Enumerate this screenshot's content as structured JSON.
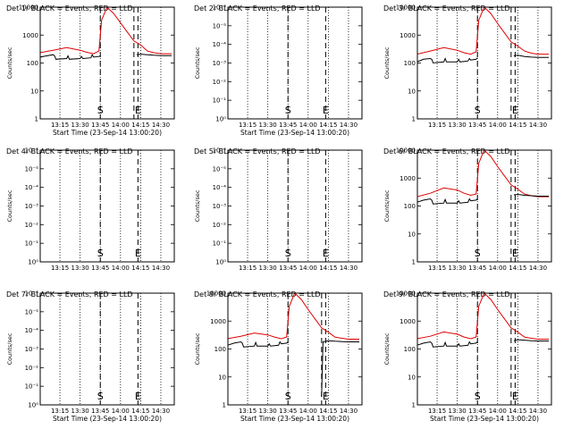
{
  "figure": {
    "background": "#ffffff",
    "axis_color": "#000000",
    "events_color": "#000000",
    "lld_color": "#e00000"
  },
  "chart_data": [
    {
      "type": "line",
      "title": "Det 1r BLACK = Events, RED = LLD",
      "xlabel": "Start Time (23-Sep-14 13:00:20)",
      "ylabel": "Counts/sec",
      "xticks": [
        "13:15",
        "13:30",
        "13:45",
        "14:00",
        "14:15",
        "14:30"
      ],
      "yticks": [
        "1",
        "10",
        "100",
        "1000",
        "10000"
      ],
      "xlim": [
        "13:00:20",
        "14:40"
      ],
      "ylim": [
        1,
        12000
      ],
      "yscale": "log",
      "grid": "vertical dotted at each tick",
      "markers": [
        {
          "label": "S",
          "time": "13:45",
          "style": "dashed"
        },
        {
          "label": "",
          "time": "14:10",
          "style": "dashed"
        },
        {
          "label": "E",
          "time": "14:13",
          "style": "dashed"
        }
      ],
      "series": [
        {
          "key": "events",
          "color": "#000000",
          "x": [
            "13:00",
            "13:05",
            "13:10",
            "13:11",
            "13:12",
            "13:20",
            "13:21",
            "13:22",
            "13:30",
            "13:31",
            "13:32",
            "13:38",
            "13:39",
            "13:40",
            "13:44",
            "13:45"
          ],
          "values": [
            180,
            200,
            220,
            200,
            150,
            160,
            200,
            150,
            160,
            190,
            160,
            170,
            220,
            180,
            190,
            200
          ]
        },
        {
          "key": "lld",
          "color": "#e00000",
          "x": [
            "13:00",
            "13:10",
            "13:20",
            "13:30",
            "13:35",
            "13:40",
            "13:44",
            "13:46",
            "13:50",
            "13:55",
            "14:00",
            "14:05",
            "14:10",
            "14:15",
            "14:20",
            "14:25",
            "14:30",
            "14:38"
          ],
          "values": [
            260,
            320,
            400,
            320,
            270,
            240,
            300,
            4000,
            12000,
            7000,
            3200,
            1500,
            700,
            500,
            300,
            260,
            240,
            240
          ]
        },
        {
          "key": "events_late",
          "color": "#000000",
          "x": [
            "14:12",
            "14:15",
            "14:20",
            "14:25",
            "14:30",
            "14:38"
          ],
          "values": [
            220,
            230,
            220,
            210,
            205,
            205
          ]
        }
      ]
    },
    {
      "type": "line",
      "title": "Det 2r BLACK = Events, RED = LLD",
      "xlabel": "Start Time (23-Sep-14 13:00:20)",
      "ylabel": "Counts/sec",
      "xticks": [
        "13:15",
        "13:30",
        "13:45",
        "14:00",
        "14:15",
        "14:30"
      ],
      "yticks": [
        "10⁰",
        "10⁻¹",
        "10⁻²",
        "10⁻³",
        "10⁻⁴",
        "10⁻⁵",
        "10⁻⁶"
      ],
      "xlim": [
        "13:00:20",
        "14:40"
      ],
      "ylim": [
        1,
        1000000
      ],
      "yscale": "log",
      "grid": "vertical dotted at each tick",
      "markers": [
        {
          "label": "S",
          "time": "13:45",
          "style": "dashed"
        },
        {
          "label": "E",
          "time": "14:13",
          "style": "dashed"
        }
      ],
      "series": []
    },
    {
      "type": "line",
      "title": "Det 3r BLACK = Events, RED = LLD",
      "xlabel": "",
      "ylabel": "Counts/sec",
      "xticks": [
        "13:15",
        "13:30",
        "13:45",
        "14:00",
        "14:15",
        "14:30"
      ],
      "yticks": [
        "1",
        "10",
        "100",
        "1000",
        "10000"
      ],
      "xlim": [
        "13:00:20",
        "14:40"
      ],
      "ylim": [
        1,
        12000
      ],
      "yscale": "log",
      "grid": "vertical dotted at each tick",
      "markers": [
        {
          "label": "S",
          "time": "13:45",
          "style": "dashed"
        },
        {
          "label": "",
          "time": "14:10",
          "style": "dashed"
        },
        {
          "label": "E",
          "time": "14:13",
          "style": "dashed"
        }
      ],
      "series": [
        {
          "key": "events",
          "color": "#000000",
          "x": [
            "13:00",
            "13:05",
            "13:10",
            "13:11",
            "13:12",
            "13:20",
            "13:21",
            "13:22",
            "13:30",
            "13:31",
            "13:32",
            "13:38",
            "13:39",
            "13:40",
            "13:44",
            "13:45"
          ],
          "values": [
            120,
            150,
            160,
            150,
            110,
            120,
            160,
            120,
            120,
            150,
            120,
            130,
            160,
            140,
            150,
            170
          ]
        },
        {
          "key": "lld",
          "color": "#e00000",
          "x": [
            "13:00",
            "13:10",
            "13:20",
            "13:30",
            "13:35",
            "13:40",
            "13:44",
            "13:46",
            "13:50",
            "13:55",
            "14:00",
            "14:05",
            "14:10",
            "14:15",
            "14:20",
            "14:25",
            "14:30",
            "14:38"
          ],
          "values": [
            230,
            300,
            400,
            320,
            260,
            230,
            280,
            4000,
            12000,
            7000,
            3000,
            1400,
            650,
            450,
            300,
            250,
            230,
            230
          ]
        },
        {
          "key": "events_late",
          "color": "#000000",
          "x": [
            "14:12",
            "14:15",
            "14:20",
            "14:25",
            "14:30",
            "14:38"
          ],
          "values": [
            200,
            210,
            190,
            180,
            175,
            175
          ]
        }
      ]
    },
    {
      "type": "line",
      "title": "Det 4r BLACK = Events, RED = LLD",
      "xlabel": "",
      "ylabel": "Counts/sec",
      "xticks": [
        "13:15",
        "13:30",
        "13:45",
        "14:00",
        "14:15",
        "14:30"
      ],
      "yticks": [
        "10⁰",
        "10⁻¹",
        "10⁻²",
        "10⁻³",
        "10⁻⁴",
        "10⁻⁵",
        "10⁻⁶"
      ],
      "xlim": [
        "13:00:20",
        "14:40"
      ],
      "ylim": [
        1,
        1000000
      ],
      "yscale": "log",
      "grid": "vertical dotted at each tick",
      "markers": [
        {
          "label": "S",
          "time": "13:45",
          "style": "dashed"
        },
        {
          "label": "E",
          "time": "14:13",
          "style": "dashed"
        }
      ],
      "series": []
    },
    {
      "type": "line",
      "title": "Det 5r BLACK = Events, RED = LLD",
      "xlabel": "",
      "ylabel": "Counts/sec",
      "xticks": [
        "13:15",
        "13:30",
        "13:45",
        "14:00",
        "14:15",
        "14:30"
      ],
      "yticks": [
        "10⁰",
        "10⁻¹",
        "10⁻²",
        "10⁻³",
        "10⁻⁴",
        "10⁻⁵",
        "10⁻⁶"
      ],
      "xlim": [
        "13:00:20",
        "14:40"
      ],
      "ylim": [
        1,
        1000000
      ],
      "yscale": "log",
      "grid": "vertical dotted at each tick",
      "markers": [
        {
          "label": "S",
          "time": "13:45",
          "style": "dashed"
        },
        {
          "label": "E",
          "time": "14:13",
          "style": "dashed"
        }
      ],
      "series": []
    },
    {
      "type": "line",
      "title": "Det 6r BLACK = Events, RED = LLD",
      "xlabel": "",
      "ylabel": "Counts/sec",
      "xticks": [
        "13:15",
        "13:30",
        "13:45",
        "14:00",
        "14:15",
        "14:30"
      ],
      "yticks": [
        "1",
        "10",
        "100",
        "1000",
        "10000"
      ],
      "xlim": [
        "13:00:20",
        "14:40"
      ],
      "ylim": [
        1,
        12000
      ],
      "yscale": "log",
      "grid": "vertical dotted at each tick",
      "markers": [
        {
          "label": "S",
          "time": "13:45",
          "style": "dashed"
        },
        {
          "label": "",
          "time": "14:10",
          "style": "dashed"
        },
        {
          "label": "E",
          "time": "14:13",
          "style": "dashed"
        }
      ],
      "series": [
        {
          "key": "events",
          "color": "#000000",
          "x": [
            "13:00",
            "13:05",
            "13:10",
            "13:11",
            "13:12",
            "13:20",
            "13:21",
            "13:22",
            "13:30",
            "13:31",
            "13:32",
            "13:38",
            "13:39",
            "13:40",
            "13:44",
            "13:45"
          ],
          "values": [
            150,
            180,
            200,
            180,
            130,
            140,
            190,
            140,
            140,
            170,
            140,
            150,
            200,
            170,
            180,
            200
          ]
        },
        {
          "key": "lld",
          "color": "#e00000",
          "x": [
            "13:00",
            "13:10",
            "13:20",
            "13:30",
            "13:35",
            "13:40",
            "13:44",
            "13:46",
            "13:50",
            "13:55",
            "14:00",
            "14:05",
            "14:10",
            "14:15",
            "14:20",
            "14:25",
            "14:30",
            "14:38"
          ],
          "values": [
            240,
            320,
            500,
            420,
            320,
            270,
            300,
            4000,
            12000,
            7000,
            3000,
            1400,
            650,
            450,
            300,
            260,
            240,
            240
          ]
        },
        {
          "key": "events_late",
          "color": "#000000",
          "x": [
            "14:12",
            "14:15",
            "14:20",
            "14:25",
            "14:30",
            "14:38"
          ],
          "values": [
            280,
            290,
            270,
            260,
            250,
            250
          ]
        }
      ]
    },
    {
      "type": "line",
      "title": "Det 7r BLACK = Events, RED = LLD",
      "xlabel": "Start Time (23-Sep-14 13:00:20)",
      "ylabel": "Counts/sec",
      "xticks": [
        "13:15",
        "13:30",
        "13:45",
        "14:00",
        "14:15",
        "14:30"
      ],
      "yticks": [
        "10⁰",
        "10⁻¹",
        "10⁻²",
        "10⁻³",
        "10⁻⁴",
        "10⁻⁵",
        "10⁻⁶"
      ],
      "xlim": [
        "13:00:20",
        "14:40"
      ],
      "ylim": [
        1,
        1000000
      ],
      "yscale": "log",
      "grid": "vertical dotted at each tick",
      "markers": [
        {
          "label": "S",
          "time": "13:45",
          "style": "dashed"
        },
        {
          "label": "E",
          "time": "14:13",
          "style": "dashed"
        }
      ],
      "series": []
    },
    {
      "type": "line",
      "title": "Det 8r BLACK = Events, RED = LLD",
      "xlabel": "Start Time (23-Sep-14 13:00:20)",
      "ylabel": "Counts/sec",
      "xticks": [
        "13:15",
        "13:30",
        "13:45",
        "14:00",
        "14:15",
        "14:30"
      ],
      "yticks": [
        "1",
        "10",
        "100",
        "1000",
        "10000"
      ],
      "xlim": [
        "13:00:20",
        "14:40"
      ],
      "ylim": [
        1,
        12000
      ],
      "yscale": "log",
      "grid": "vertical dotted at each tick",
      "markers": [
        {
          "label": "S",
          "time": "13:45",
          "style": "dashed"
        },
        {
          "label": "",
          "time": "14:10",
          "style": "dashed"
        },
        {
          "label": "E",
          "time": "14:13",
          "style": "dashed"
        }
      ],
      "series": [
        {
          "key": "events",
          "color": "#000000",
          "x": [
            "13:00",
            "13:05",
            "13:10",
            "13:11",
            "13:12",
            "13:20",
            "13:21",
            "13:22",
            "13:30",
            "13:31",
            "13:32",
            "13:38",
            "13:39",
            "13:40",
            "13:44",
            "13:45"
          ],
          "values": [
            150,
            180,
            200,
            180,
            130,
            140,
            190,
            140,
            140,
            170,
            140,
            150,
            200,
            170,
            180,
            200
          ]
        },
        {
          "key": "lld",
          "color": "#e00000",
          "x": [
            "13:00",
            "13:10",
            "13:20",
            "13:30",
            "13:35",
            "13:40",
            "13:44",
            "13:46",
            "13:50",
            "13:55",
            "14:00",
            "14:05",
            "14:10",
            "14:15",
            "14:20",
            "14:25",
            "14:30",
            "14:38"
          ],
          "values": [
            260,
            320,
            420,
            360,
            300,
            260,
            300,
            4000,
            12000,
            7000,
            3000,
            1400,
            650,
            450,
            300,
            270,
            250,
            250
          ]
        },
        {
          "key": "events_late",
          "color": "#000000",
          "x": [
            "14:10",
            "14:11",
            "14:15",
            "14:20",
            "14:25",
            "14:30",
            "14:38"
          ],
          "values": [
            2,
            200,
            220,
            210,
            205,
            200,
            200
          ]
        }
      ]
    },
    {
      "type": "line",
      "title": "Det 9r BLACK = Events, RED = LLD",
      "xlabel": "Start Time (23-Sep-14 13:00:20)",
      "ylabel": "Counts/sec",
      "xticks": [
        "13:15",
        "13:30",
        "13:45",
        "14:00",
        "14:15",
        "14:30"
      ],
      "yticks": [
        "1",
        "10",
        "100",
        "1000",
        "10000"
      ],
      "xlim": [
        "13:00:20",
        "14:40"
      ],
      "ylim": [
        1,
        12000
      ],
      "yscale": "log",
      "grid": "vertical dotted at each tick",
      "markers": [
        {
          "label": "S",
          "time": "13:45",
          "style": "dashed"
        },
        {
          "label": "",
          "time": "14:10",
          "style": "dashed"
        },
        {
          "label": "E",
          "time": "14:13",
          "style": "dashed"
        }
      ],
      "series": [
        {
          "key": "events",
          "color": "#000000",
          "x": [
            "13:00",
            "13:05",
            "13:10",
            "13:11",
            "13:12",
            "13:20",
            "13:21",
            "13:22",
            "13:30",
            "13:31",
            "13:32",
            "13:38",
            "13:39",
            "13:40",
            "13:44",
            "13:45"
          ],
          "values": [
            150,
            180,
            200,
            180,
            130,
            140,
            190,
            140,
            140,
            170,
            140,
            150,
            200,
            170,
            180,
            200
          ]
        },
        {
          "key": "lld",
          "color": "#e00000",
          "x": [
            "13:00",
            "13:10",
            "13:20",
            "13:30",
            "13:35",
            "13:40",
            "13:44",
            "13:46",
            "13:50",
            "13:55",
            "14:00",
            "14:05",
            "14:10",
            "14:15",
            "14:20",
            "14:25",
            "14:30",
            "14:38"
          ],
          "values": [
            260,
            320,
            460,
            380,
            300,
            260,
            300,
            4000,
            12000,
            7000,
            3000,
            1400,
            650,
            450,
            300,
            270,
            250,
            250
          ]
        },
        {
          "key": "events_late",
          "color": "#000000",
          "x": [
            "14:12",
            "14:15",
            "14:20",
            "14:25",
            "14:30",
            "14:38"
          ],
          "values": [
            220,
            240,
            230,
            220,
            215,
            215
          ]
        }
      ]
    }
  ]
}
